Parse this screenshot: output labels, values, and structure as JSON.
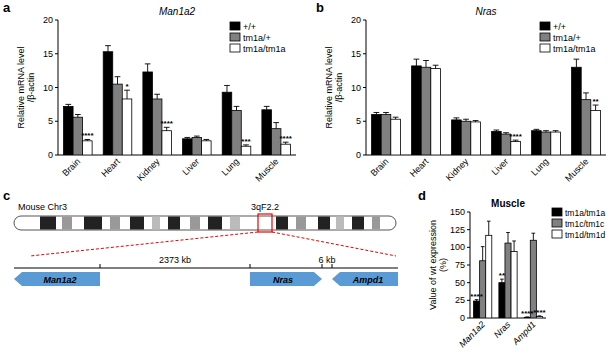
{
  "chart_data": [
    {
      "type": "bar",
      "annotations": [
        "a"
      ],
      "title": "Man1a2",
      "ylabel": "Relative mRNA level\n/β-actin",
      "categories": [
        "Brain",
        "Heart",
        "Kidney",
        "Liver",
        "Lung",
        "Muscle"
      ],
      "series": [
        {
          "name": "+/+",
          "color": "#000000",
          "values": [
            7.2,
            15.3,
            12.3,
            2.4,
            9.3,
            6.7
          ],
          "errors": [
            0.3,
            0.9,
            1.2,
            0.2,
            1.0,
            0.5
          ],
          "significance": [
            null,
            null,
            null,
            null,
            null,
            null
          ]
        },
        {
          "name": "tm1a/+",
          "color": "#808080",
          "values": [
            5.6,
            10.5,
            8.3,
            2.6,
            6.6,
            3.9
          ],
          "errors": [
            0.4,
            1.1,
            0.7,
            0.2,
            0.6,
            0.9
          ],
          "significance": [
            null,
            null,
            null,
            null,
            null,
            null
          ]
        },
        {
          "name": "tm1a/tm1a",
          "color": "#ffffff",
          "values": [
            2.1,
            8.3,
            3.6,
            2.1,
            1.3,
            1.6
          ],
          "errors": [
            0.2,
            1.3,
            0.5,
            0.2,
            0.2,
            0.3
          ],
          "significance": [
            "****",
            "*",
            "****",
            null,
            "***",
            "****"
          ]
        }
      ],
      "ylim": [
        0,
        20
      ],
      "yticks": [
        0,
        5,
        10,
        15,
        20
      ],
      "grid": false,
      "legend": "upper right"
    },
    {
      "type": "bar",
      "annotations": [
        "b"
      ],
      "title": "Nras",
      "ylabel": "Relative mRNA level\n/β-actin",
      "categories": [
        "Brain",
        "Heart",
        "Kidney",
        "Liver",
        "Lung",
        "Muscle"
      ],
      "series": [
        {
          "name": "+/+",
          "color": "#000000",
          "values": [
            6.0,
            13.2,
            5.2,
            3.5,
            3.6,
            13.0
          ],
          "errors": [
            0.3,
            1.0,
            0.3,
            0.2,
            0.2,
            1.2
          ],
          "significance": [
            null,
            null,
            null,
            null,
            null,
            null
          ]
        },
        {
          "name": "tm1a/+",
          "color": "#808080",
          "values": [
            6.0,
            13.0,
            5.0,
            3.1,
            3.4,
            8.2
          ],
          "errors": [
            0.3,
            1.0,
            0.3,
            0.2,
            0.2,
            1.0
          ],
          "significance": [
            null,
            null,
            null,
            null,
            null,
            null
          ]
        },
        {
          "name": "tm1a/tm1a",
          "color": "#ffffff",
          "values": [
            5.3,
            12.8,
            4.9,
            2.0,
            3.4,
            6.6
          ],
          "errors": [
            0.3,
            0.5,
            0.2,
            0.2,
            0.2,
            0.8
          ],
          "significance": [
            null,
            null,
            null,
            "****",
            null,
            "**"
          ]
        }
      ],
      "ylim": [
        0,
        20
      ],
      "yticks": [
        0,
        5,
        10,
        15,
        20
      ],
      "grid": false,
      "legend": "upper right"
    },
    {
      "type": "bar",
      "annotations": [
        "d"
      ],
      "title": "Muscle",
      "ylabel": "Value of wt expression\n(%)",
      "categories": [
        "Man1a2",
        "Nras",
        "Ampd1"
      ],
      "series": [
        {
          "name": "tm1a/tm1a",
          "color": "#000000",
          "values": [
            24,
            50,
            1
          ],
          "errors": [
            2,
            5,
            0.5
          ],
          "significance": [
            "****",
            "**",
            "****"
          ]
        },
        {
          "name": "tm1c/tm1c",
          "color": "#808080",
          "values": [
            81,
            106,
            110
          ],
          "errors": [
            20,
            15,
            10
          ],
          "significance": [
            null,
            null,
            null
          ]
        },
        {
          "name": "tm1d/tm1d",
          "color": "#ffffff",
          "values": [
            117,
            94,
            2
          ],
          "errors": [
            20,
            15,
            1
          ],
          "significance": [
            null,
            null,
            "****"
          ]
        }
      ],
      "ylim": [
        0,
        150
      ],
      "yticks": [
        0,
        25,
        50,
        75,
        100,
        125,
        150
      ],
      "grid": false,
      "legend": "upper right"
    }
  ],
  "diagram": {
    "annotations": [
      "c"
    ],
    "chromosome": "Mouse Chr3",
    "band": "3qF2.2",
    "genes": [
      {
        "label": "Man1a2",
        "direction": "left"
      },
      {
        "label": "Nras",
        "direction": "right"
      },
      {
        "label": "Ampd1",
        "direction": "left"
      }
    ],
    "distances": [
      "2373 kb",
      "6 kb"
    ]
  }
}
